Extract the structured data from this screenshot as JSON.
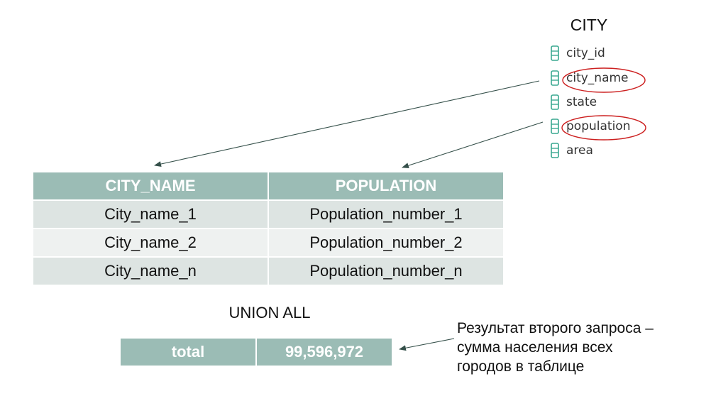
{
  "schema": {
    "table_name": "CITY",
    "fields": [
      {
        "name": "city_id",
        "highlighted": false
      },
      {
        "name": "city_name",
        "highlighted": true
      },
      {
        "name": "state",
        "highlighted": false
      },
      {
        "name": "population",
        "highlighted": true
      },
      {
        "name": "area",
        "highlighted": false
      }
    ],
    "field_icon": "database-column-icon"
  },
  "result_table": {
    "headers": [
      "CITY_NAME",
      "POPULATION"
    ],
    "rows": [
      [
        "City_name_1",
        "Population_number_1"
      ],
      [
        "City_name_2",
        "Population_number_2"
      ],
      [
        "City_name_n",
        "Population_number_n"
      ]
    ]
  },
  "union_label": "UNION ALL",
  "total_row": {
    "label": "total",
    "value": "99,596,972"
  },
  "note": {
    "lines": [
      "Результат второго запроса –",
      "сумма населения всех",
      "городов в таблице"
    ]
  },
  "colors": {
    "header_fill": "#9bbcb5",
    "row_fill_odd": "#dde4e2",
    "row_fill_even": "#eef1f0",
    "highlight_ellipse": "#cc1f1f",
    "arrow": "#35504a",
    "field_icon": "#3aa891"
  }
}
